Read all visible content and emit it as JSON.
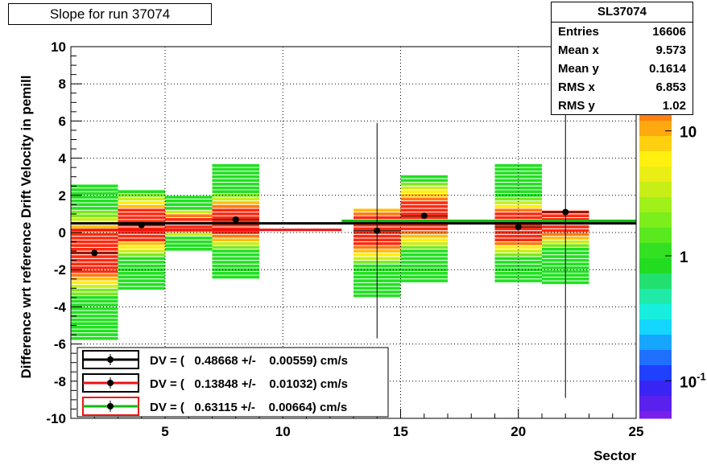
{
  "title": "Slope for run 37074",
  "stats": {
    "name": "SL37074",
    "rows": [
      {
        "label": "Entries",
        "value": "16606"
      },
      {
        "label": "Mean x",
        "value": "9.573"
      },
      {
        "label": "Mean y",
        "value": "0.1614"
      },
      {
        "label": "RMS x",
        "value": "6.853"
      },
      {
        "label": "RMS y",
        "value": "1.02"
      }
    ]
  },
  "colors": {
    "fit_line_1": "#000000",
    "fit_line_2": "#ee1111",
    "fit_line_3": "#11bb11",
    "marker": "#000000"
  },
  "chart_data": {
    "type": "heatmap",
    "title": "Slope for run 37074",
    "xlabel": "Sector",
    "ylabel": "Difference wrt reference Drift Velocity in pemill",
    "xlim": [
      1,
      25
    ],
    "ylim": [
      -10,
      10
    ],
    "x_ticks": [
      5,
      10,
      15,
      20,
      25
    ],
    "y_ticks": [
      -10,
      -8,
      -6,
      -4,
      -2,
      0,
      2,
      4,
      6,
      8,
      10
    ],
    "grid": true,
    "colorbar": {
      "scale": "log",
      "ticks": [
        "10",
        "1",
        "10^-1"
      ],
      "range": [
        0.05,
        14
      ]
    },
    "columns": [
      {
        "x0": 1,
        "x1": 3,
        "ymin": -5.8,
        "ymax": 2.6,
        "center": -1.1
      },
      {
        "x0": 3,
        "x1": 5,
        "ymin": -3.1,
        "ymax": 2.3,
        "center": 0.4
      },
      {
        "x0": 5,
        "x1": 7,
        "ymin": -1.0,
        "ymax": 2.0,
        "center": 0.5
      },
      {
        "x0": 7,
        "x1": 9,
        "ymin": -2.5,
        "ymax": 3.7,
        "center": 0.6
      },
      {
        "x0": 13,
        "x1": 15,
        "ymin": -3.5,
        "ymax": 1.2,
        "center": 0.1
      },
      {
        "x0": 15,
        "x1": 17,
        "ymin": -2.7,
        "ymax": 3.1,
        "center": 0.9
      },
      {
        "x0": 19,
        "x1": 21,
        "ymin": -2.7,
        "ymax": 3.6,
        "center": 0.3
      },
      {
        "x0": 21,
        "x1": 23,
        "ymin": -2.8,
        "ymax": 1.2,
        "center": 0.9
      }
    ],
    "profile_points": [
      {
        "x": 2,
        "y": -1.1,
        "err": 0
      },
      {
        "x": 4,
        "y": 0.4,
        "err": 0
      },
      {
        "x": 8,
        "y": 0.7,
        "err": 0
      },
      {
        "x": 14,
        "y": 0.1,
        "err": 5.8
      },
      {
        "x": 16,
        "y": 0.9,
        "err": 0
      },
      {
        "x": 20,
        "y": 0.3,
        "err": 0
      },
      {
        "x": 22,
        "y": 1.1,
        "err": 10
      }
    ],
    "fit_lines": [
      {
        "x0": 1,
        "x1": 25,
        "y": 0.49,
        "color": "#000000"
      },
      {
        "x0": 1,
        "x1": 12.5,
        "y": 0.14,
        "color": "#ee1111"
      },
      {
        "x0": 12.5,
        "x1": 25,
        "y": 0.63,
        "color": "#11bb11"
      }
    ],
    "legend": {
      "placement": "bottom-left",
      "entries": [
        {
          "text": "DV = (   0.48668 +/-    0.00559) cm/s",
          "line": "#000000",
          "box": "#000000"
        },
        {
          "text": "DV = (   0.13848 +/-    0.01032) cm/s",
          "line": "#ee1111",
          "box": "#000000"
        },
        {
          "text": "DV = (   0.63115 +/-    0.00664) cm/s",
          "line": "#11bb11",
          "box": "#ee1111"
        }
      ]
    }
  }
}
